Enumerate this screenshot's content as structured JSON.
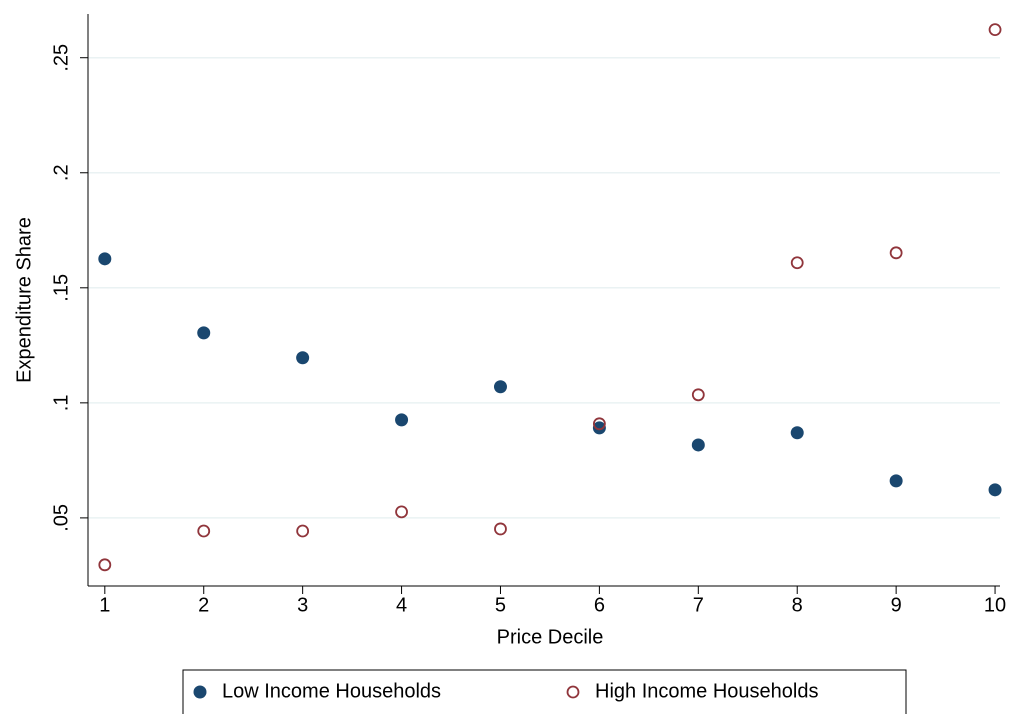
{
  "chart_data": {
    "type": "scatter",
    "x_label": "Price Decile",
    "y_label": "Expenditure Share",
    "x": [
      1,
      2,
      3,
      4,
      5,
      6,
      7,
      8,
      9,
      10
    ],
    "series": [
      {
        "name": "Low Income Households",
        "color": "#1a476f",
        "marker": "filled",
        "values": [
          0.1626,
          0.1304,
          0.1196,
          0.0926,
          0.107,
          0.0891,
          0.0817,
          0.087,
          0.0661,
          0.0622
        ]
      },
      {
        "name": "High Income Households",
        "color": "#90353b",
        "marker": "hollow",
        "values": [
          0.0296,
          0.0443,
          0.0443,
          0.0526,
          0.0452,
          0.0909,
          0.1035,
          0.1609,
          0.1652,
          0.2622
        ]
      }
    ],
    "xlim": [
      0.83,
      10.05
    ],
    "ylim": [
      0.0204,
      0.269
    ],
    "xticks": [
      1,
      2,
      3,
      4,
      5,
      6,
      7,
      8,
      9,
      10
    ],
    "yticks": [
      {
        "value": 0.05,
        "label": ".05"
      },
      {
        "value": 0.1,
        "label": ".1"
      },
      {
        "value": 0.15,
        "label": ".15"
      },
      {
        "value": 0.2,
        "label": ".2"
      },
      {
        "value": 0.25,
        "label": ".25"
      }
    ],
    "grid": true,
    "legend": "bottom"
  }
}
